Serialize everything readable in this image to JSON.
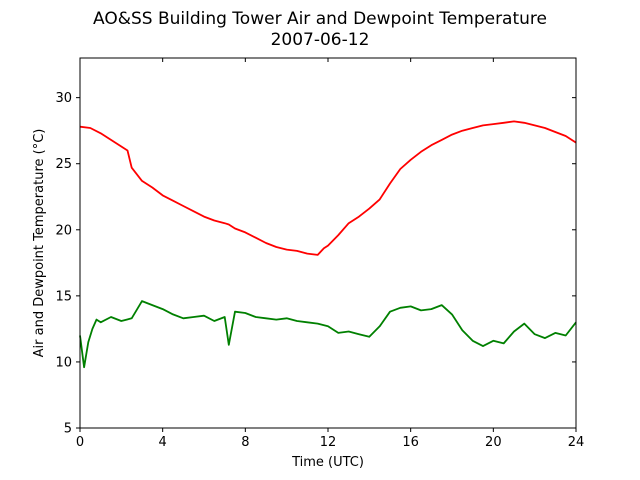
{
  "chart_data": {
    "type": "line",
    "title": "AO&SS Building Tower Air and Dewpoint Temperature",
    "subtitle": "2007-06-12",
    "xlabel": "Time (UTC)",
    "ylabel": "Air and Dewpoint Temperature (°C)",
    "xlim": [
      0,
      24
    ],
    "ylim": [
      5,
      33
    ],
    "xticks": [
      0,
      4,
      8,
      12,
      16,
      20,
      24
    ],
    "yticks": [
      5,
      10,
      15,
      20,
      25,
      30
    ],
    "grid": false,
    "series": [
      {
        "color": "#ff0000",
        "x": [
          0,
          0.5,
          1,
          1.5,
          2,
          2.3,
          2.5,
          3,
          3.5,
          4,
          4.5,
          5,
          5.5,
          6,
          6.5,
          7,
          7.2,
          7.5,
          8,
          8.5,
          9,
          9.5,
          10,
          10.5,
          11,
          11.5,
          11.8,
          12,
          12.5,
          13,
          13.5,
          14,
          14.5,
          15,
          15.5,
          16,
          16.5,
          17,
          17.5,
          18,
          18.5,
          19,
          19.5,
          20,
          20.5,
          21,
          21.5,
          22,
          22.5,
          23,
          23.5,
          24
        ],
        "y": [
          27.8,
          27.7,
          27.3,
          26.8,
          26.3,
          26.0,
          24.7,
          23.7,
          23.2,
          22.6,
          22.2,
          21.8,
          21.4,
          21.0,
          20.7,
          20.5,
          20.4,
          20.1,
          19.8,
          19.4,
          19.0,
          18.7,
          18.5,
          18.4,
          18.2,
          18.1,
          18.6,
          18.8,
          19.6,
          20.5,
          21.0,
          21.6,
          22.3,
          23.5,
          24.6,
          25.3,
          25.9,
          26.4,
          26.8,
          27.2,
          27.5,
          27.7,
          27.9,
          28.0,
          28.1,
          28.2,
          28.1,
          27.9,
          27.7,
          27.4,
          27.1,
          26.6
        ]
      },
      {
        "color": "#008000",
        "x": [
          0,
          0.2,
          0.4,
          0.6,
          0.8,
          1,
          1.5,
          2,
          2.5,
          3,
          3.5,
          4,
          4.5,
          5,
          5.5,
          6,
          6.5,
          7,
          7.2,
          7.5,
          8,
          8.5,
          9,
          9.5,
          10,
          10.5,
          11,
          11.5,
          12,
          12.5,
          13,
          13.5,
          14,
          14.5,
          15,
          15.5,
          16,
          16.5,
          17,
          17.5,
          18,
          18.5,
          19,
          19.5,
          20,
          20.5,
          21,
          21.5,
          22,
          22.5,
          23,
          23.5,
          24
        ],
        "y": [
          12.0,
          9.6,
          11.5,
          12.5,
          13.2,
          13.0,
          13.4,
          13.1,
          13.3,
          14.6,
          14.3,
          14.0,
          13.6,
          13.3,
          13.4,
          13.5,
          13.1,
          13.4,
          11.3,
          13.8,
          13.7,
          13.4,
          13.3,
          13.2,
          13.3,
          13.1,
          13.0,
          12.9,
          12.7,
          12.2,
          12.3,
          12.1,
          11.9,
          12.7,
          13.8,
          14.1,
          14.2,
          13.9,
          14.0,
          14.3,
          13.6,
          12.4,
          11.6,
          11.2,
          11.6,
          11.4,
          12.3,
          12.9,
          12.1,
          11.8,
          12.2,
          12.0,
          13.0
        ]
      }
    ]
  }
}
